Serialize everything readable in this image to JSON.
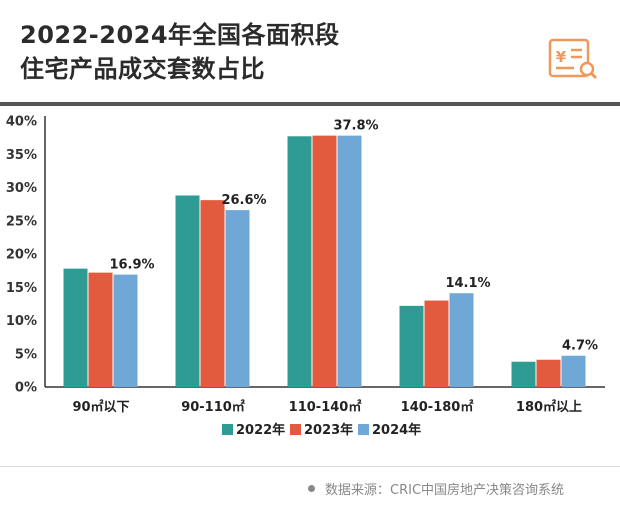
{
  "header": {
    "title_line1": "2022-2024年全国各面积段",
    "title_line2": "住宅产品成交套数占比"
  },
  "logo": {
    "icon": "yuan-document-search-icon",
    "color": "#f0975a"
  },
  "chart_data": {
    "type": "bar",
    "categories": [
      "90㎡以下",
      "90-110㎡",
      "110-140㎡",
      "140-180㎡",
      "180㎡以上"
    ],
    "series": [
      {
        "name": "2022年",
        "color": "#2e9c94",
        "values": [
          17.8,
          28.8,
          37.7,
          12.2,
          3.8
        ]
      },
      {
        "name": "2023年",
        "color": "#e35b3e",
        "values": [
          17.2,
          28.1,
          37.8,
          13.0,
          4.1
        ]
      },
      {
        "name": "2024年",
        "color": "#6fa8d6",
        "values": [
          16.9,
          26.6,
          37.8,
          14.1,
          4.7
        ]
      }
    ],
    "data_labels": [
      "16.9%",
      "26.6%",
      "37.8%",
      "14.1%",
      "4.7%"
    ],
    "y_ticks": [
      "0%",
      "5%",
      "10%",
      "15%",
      "20%",
      "25%",
      "30%",
      "35%",
      "40%"
    ],
    "ylim": [
      0,
      40
    ],
    "grid": false,
    "legend_position": "bottom"
  },
  "footer": {
    "source": "数据来源：CRIC中国房地产决策咨询系统"
  }
}
